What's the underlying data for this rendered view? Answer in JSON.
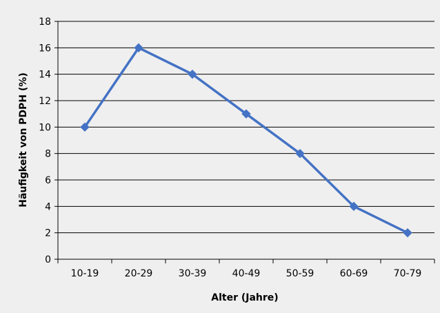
{
  "chart_data": {
    "type": "line",
    "title": "",
    "xlabel": "Alter (Jahre)",
    "ylabel": "Häufigkeit von PDPH (%)",
    "categories": [
      "10-19",
      "20-29",
      "30-39",
      "40-49",
      "50-59",
      "60-69",
      "70-79"
    ],
    "series": [
      {
        "values": [
          10,
          16,
          14,
          11,
          8,
          4,
          2
        ],
        "color": "#4472c4"
      }
    ],
    "ylim": [
      0,
      18
    ],
    "yticks": [
      "0",
      "2",
      "4",
      "6",
      "8",
      "10",
      "12",
      "14",
      "16",
      "18"
    ],
    "grid": true,
    "legend": "none",
    "marker": "diamond"
  }
}
